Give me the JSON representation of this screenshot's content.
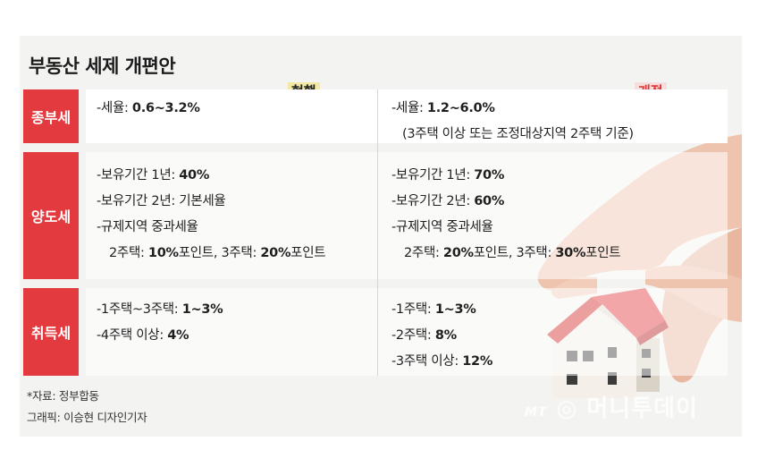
{
  "title": "부동산 세제 개편안",
  "columns": {
    "current": "현행",
    "revised": "개정"
  },
  "rows": [
    {
      "label": "종부세",
      "current": [
        {
          "prefix": "-세율: ",
          "value": "0.6~3.2%",
          "suffix": ""
        }
      ],
      "revised": [
        {
          "prefix": "-세율: ",
          "value": "1.2~6.0%",
          "suffix": ""
        },
        {
          "prefix": "(3주택 이상 또는 조정대상지역 2주택 기준)",
          "value": "",
          "suffix": ""
        }
      ]
    },
    {
      "label": "양도세",
      "current": [
        {
          "prefix": "-보유기간 1년: ",
          "value": "40%",
          "suffix": ""
        },
        {
          "prefix": "-보유기간 2년: 기본세율",
          "value": "",
          "suffix": ""
        },
        {
          "prefix": "-규제지역 중과세율",
          "value": "",
          "suffix": ""
        },
        {
          "prefix": "2주택: ",
          "value": "10%",
          "suffix": "포인트, 3주택: ",
          "value2": "20%",
          "suffix2": "포인트"
        }
      ],
      "revised": [
        {
          "prefix": "-보유기간 1년: ",
          "value": "70%",
          "suffix": ""
        },
        {
          "prefix": "-보유기간 2년: ",
          "value": "60%",
          "suffix": ""
        },
        {
          "prefix": "-규제지역 중과세율",
          "value": "",
          "suffix": ""
        },
        {
          "prefix": "2주택: ",
          "value": "20%",
          "suffix": "포인트, 3주택: ",
          "value2": "30%",
          "suffix2": "포인트"
        }
      ]
    },
    {
      "label": "취득세",
      "current": [
        {
          "prefix": "-1주택~3주택: ",
          "value": "1~3%",
          "suffix": ""
        },
        {
          "prefix": "-4주택 이상: ",
          "value": "4%",
          "suffix": ""
        }
      ],
      "revised": [
        {
          "prefix": "-1주택: ",
          "value": "1~3%",
          "suffix": ""
        },
        {
          "prefix": "-2주택: ",
          "value": "8%",
          "suffix": ""
        },
        {
          "prefix": "-3주택 이상: ",
          "value": "12%",
          "suffix": ""
        }
      ]
    }
  ],
  "footer": {
    "source": "*자료: 정부합동",
    "credit": "그래픽: 이승현 디자인기자"
  },
  "watermark": {
    "mt": "MT",
    "brand": "머니투데이"
  },
  "colors": {
    "accent": "#e23a3f",
    "revised_header": "#e03333"
  },
  "illustration": "hand-holding-house"
}
